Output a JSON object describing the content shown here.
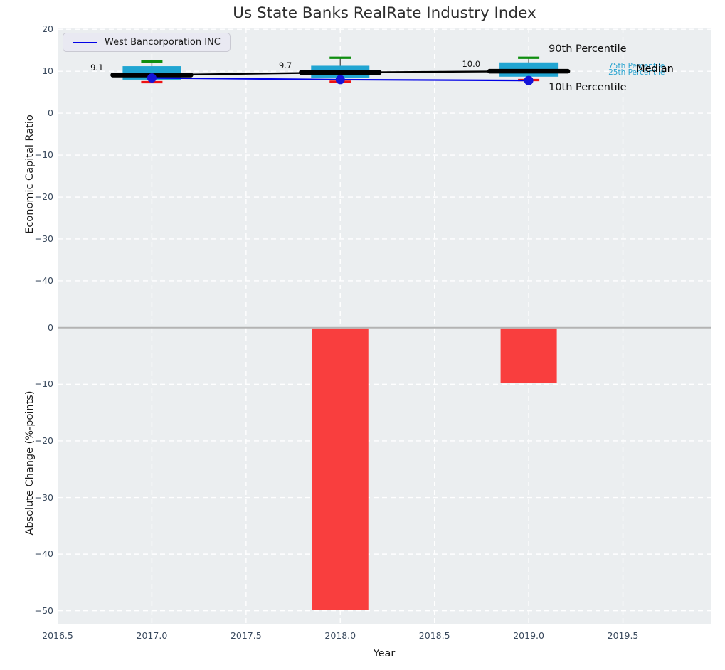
{
  "title": "Us State Banks RealRate Industry Index",
  "legend": {
    "series_label": "West Bancorporation INC"
  },
  "axes": {
    "top": {
      "ylabel": "Economic Capital Ratio",
      "yticks": [
        20,
        10,
        0,
        -10,
        -20,
        -30,
        -40
      ],
      "ylim": [
        20.2,
        -45.1
      ],
      "grid": true
    },
    "bottom": {
      "ylabel": "Absolute Change (%-points)",
      "yticks": [
        0,
        -10,
        -20,
        -30,
        -40,
        -50
      ],
      "ylim": [
        4.5,
        -52.3
      ],
      "grid": true
    },
    "x": {
      "label": "Year",
      "ticks": [
        {
          "label": "2016.5",
          "value": 2016.5
        },
        {
          "label": "2017.0",
          "value": 2017.0
        },
        {
          "label": "2017.5",
          "value": 2017.5
        },
        {
          "label": "2018.0",
          "value": 2018.0
        },
        {
          "label": "2018.5",
          "value": 2018.5
        },
        {
          "label": "2019.0",
          "value": 2019.0
        },
        {
          "label": "2019.5",
          "value": 2019.5
        }
      ],
      "xlim": [
        2016.5,
        2019.97
      ]
    }
  },
  "chart_data": [
    {
      "type": "boxplot",
      "panel": "top",
      "categories": [
        2017,
        2018,
        2019
      ],
      "series": [
        {
          "name": "90th Percentile",
          "values": [
            12.3,
            13.2,
            13.2
          ]
        },
        {
          "name": "75th Percentile",
          "values": [
            11.2,
            11.3,
            12.1
          ]
        },
        {
          "name": "Median",
          "values": [
            9.1,
            9.7,
            10.0
          ]
        },
        {
          "name": "25th Percentile",
          "values": [
            8.0,
            8.5,
            8.7
          ]
        },
        {
          "name": "10th Percentile",
          "values": [
            7.4,
            7.5,
            7.9
          ]
        },
        {
          "name": "West Bancorporation INC",
          "values": [
            8.4,
            8.0,
            7.8
          ]
        }
      ],
      "median_labels": [
        "9.1",
        "9.7",
        "10.0"
      ],
      "percentile_annotations": {
        "p90": "90th Percentile",
        "p75": "75th Percentile",
        "p25": "25th Percentile",
        "median": "Median",
        "p10": "10th Percentile"
      },
      "legend_position": "upper left"
    },
    {
      "type": "bar",
      "panel": "bottom",
      "x": [
        2018,
        2019
      ],
      "values": [
        -49.8,
        -9.8
      ]
    }
  ],
  "colors": {
    "panel_bg": "#ebeef0",
    "grid": "#ffffff",
    "box_fill": "#21a5d2",
    "whisker": "#5a5a5a",
    "cap_high": "#0f8e0f",
    "cap_low": "#ee1111",
    "median_line": "#000000",
    "company_line": "#0202e6",
    "company_dot": "#1414d8",
    "bar": "#f93e3e",
    "zero_line": "#b3b3b3",
    "tick_text": "#3a4a5e",
    "cyan_text": "#29a3cf",
    "dark_text": "#111111"
  }
}
